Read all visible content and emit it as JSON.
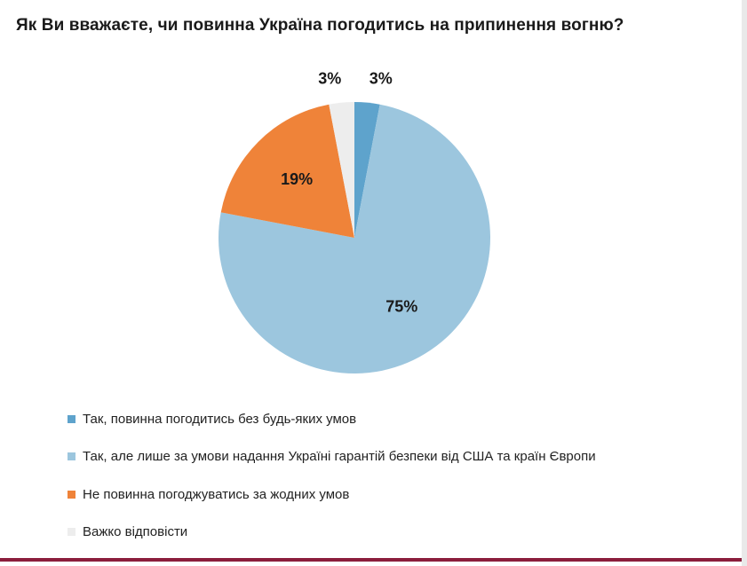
{
  "chart_data": {
    "type": "pie",
    "title": "Як Ви вважаєте, чи повинна Україна погодитись на припинення вогню?",
    "slices": [
      {
        "label": "Так, повинна погодитись без будь-яких умов",
        "value": 3,
        "value_label": "3%",
        "color": "#5ea3cc"
      },
      {
        "label": "Так, але лише за умови надання Україні гарантій безпеки від США та країн Європи",
        "value": 75,
        "value_label": "75%",
        "color": "#9cc6de"
      },
      {
        "label": "Не повинна погоджуватись за жодних умов",
        "value": 19,
        "value_label": "19%",
        "color": "#ef8339"
      },
      {
        "label": "Важко відповісти",
        "value": 3,
        "value_label": "3%",
        "color": "#ededed"
      }
    ],
    "legend_position": "bottom-left",
    "start_angle": "12 o'clock",
    "direction": "clockwise"
  }
}
